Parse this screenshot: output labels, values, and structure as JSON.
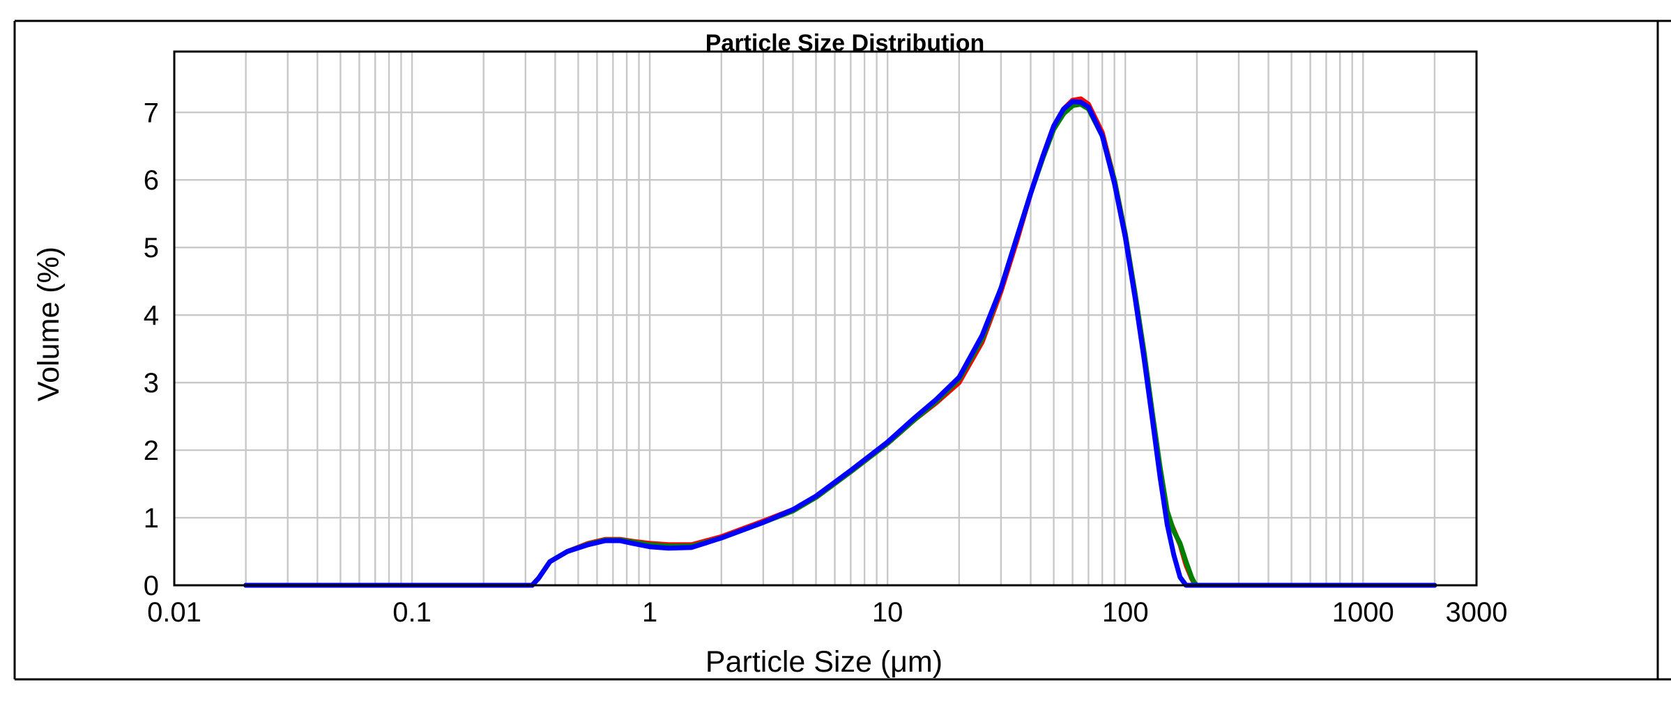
{
  "chart_data": {
    "type": "line",
    "title": "Particle Size Distribution",
    "xlabel": "Particle Size (μm)",
    "ylabel": "Volume (%)",
    "xscale": "log",
    "xlim": [
      0.01,
      3000
    ],
    "ylim": [
      0,
      7.9
    ],
    "grid": true,
    "x_ticks": [
      {
        "value": 0.01,
        "label": "0.01"
      },
      {
        "value": 0.1,
        "label": "0.1"
      },
      {
        "value": 1,
        "label": "1"
      },
      {
        "value": 10,
        "label": "10"
      },
      {
        "value": 100,
        "label": "100"
      },
      {
        "value": 1000,
        "label": "1000"
      },
      {
        "value": 3000,
        "label": "3000"
      }
    ],
    "y_ticks": [
      {
        "value": 0,
        "label": "0"
      },
      {
        "value": 1,
        "label": "1"
      },
      {
        "value": 2,
        "label": "2"
      },
      {
        "value": 3,
        "label": "3"
      },
      {
        "value": 4,
        "label": "4"
      },
      {
        "value": 5,
        "label": "5"
      },
      {
        "value": 6,
        "label": "6"
      },
      {
        "value": 7,
        "label": "7"
      }
    ],
    "colors": [
      "#ff0000",
      "#008000",
      "#0000ff"
    ],
    "series": [
      {
        "color": "#ff0000",
        "x": [
          0.02,
          0.2,
          0.32,
          0.34,
          0.38,
          0.45,
          0.55,
          0.65,
          0.75,
          0.85,
          1.0,
          1.2,
          1.5,
          2.0,
          3.0,
          4.0,
          5.0,
          7.0,
          10.0,
          13.0,
          16.0,
          20.0,
          25.0,
          30.0,
          35.0,
          40.0,
          45.0,
          50.0,
          55.0,
          60.0,
          65.0,
          70.0,
          80.0,
          90.0,
          100.0,
          110.0,
          120.0,
          130.0,
          140.0,
          150.0,
          160.0,
          170.0,
          180.0,
          190.0,
          195.0,
          200.0,
          220.0,
          500.0,
          1000.0,
          2000.0
        ],
        "y": [
          0.0,
          0.0,
          0.0,
          0.1,
          0.35,
          0.5,
          0.62,
          0.68,
          0.68,
          0.65,
          0.62,
          0.6,
          0.6,
          0.72,
          0.95,
          1.12,
          1.3,
          1.68,
          2.1,
          2.45,
          2.7,
          3.0,
          3.6,
          4.35,
          5.1,
          5.8,
          6.35,
          6.8,
          7.05,
          7.18,
          7.2,
          7.12,
          6.7,
          6.0,
          5.2,
          4.3,
          3.4,
          2.5,
          1.7,
          1.05,
          0.82,
          0.6,
          0.3,
          0.1,
          0.03,
          0.0,
          0.0,
          0.0,
          0.0,
          0.0
        ]
      },
      {
        "color": "#008000",
        "x": [
          0.02,
          0.2,
          0.32,
          0.34,
          0.38,
          0.45,
          0.55,
          0.65,
          0.75,
          0.85,
          1.0,
          1.2,
          1.5,
          2.0,
          3.0,
          4.0,
          5.0,
          7.0,
          10.0,
          13.0,
          16.0,
          20.0,
          25.0,
          30.0,
          35.0,
          40.0,
          45.0,
          50.0,
          55.0,
          60.0,
          65.0,
          70.0,
          80.0,
          90.0,
          100.0,
          110.0,
          120.0,
          130.0,
          140.0,
          150.0,
          160.0,
          170.0,
          180.0,
          190.0,
          195.0,
          200.0,
          220.0,
          500.0,
          1000.0,
          2000.0
        ],
        "y": [
          0.0,
          0.0,
          0.0,
          0.1,
          0.35,
          0.5,
          0.61,
          0.67,
          0.67,
          0.64,
          0.6,
          0.58,
          0.58,
          0.7,
          0.93,
          1.1,
          1.3,
          1.68,
          2.1,
          2.45,
          2.72,
          3.05,
          3.65,
          4.4,
          5.15,
          5.8,
          6.32,
          6.75,
          6.98,
          7.1,
          7.12,
          7.05,
          6.65,
          6.0,
          5.2,
          4.32,
          3.45,
          2.55,
          1.75,
          1.1,
          0.8,
          0.62,
          0.35,
          0.12,
          0.04,
          0.0,
          0.0,
          0.0,
          0.0,
          0.0
        ]
      },
      {
        "color": "#0000ff",
        "x": [
          0.02,
          0.2,
          0.32,
          0.34,
          0.38,
          0.45,
          0.55,
          0.65,
          0.75,
          0.85,
          1.0,
          1.2,
          1.5,
          2.0,
          3.0,
          4.0,
          5.0,
          7.0,
          10.0,
          13.0,
          16.0,
          20.0,
          25.0,
          30.0,
          35.0,
          40.0,
          45.0,
          50.0,
          55.0,
          60.0,
          65.0,
          70.0,
          80.0,
          90.0,
          100.0,
          110.0,
          120.0,
          130.0,
          140.0,
          150.0,
          160.0,
          170.0,
          180.0,
          2000.0
        ],
        "y": [
          0.0,
          0.0,
          0.0,
          0.1,
          0.35,
          0.5,
          0.6,
          0.66,
          0.66,
          0.62,
          0.57,
          0.55,
          0.56,
          0.7,
          0.93,
          1.12,
          1.32,
          1.7,
          2.12,
          2.48,
          2.75,
          3.08,
          3.7,
          4.4,
          5.15,
          5.8,
          6.35,
          6.8,
          7.05,
          7.16,
          7.15,
          7.08,
          6.65,
          5.95,
          5.15,
          4.25,
          3.35,
          2.45,
          1.6,
          0.9,
          0.45,
          0.12,
          0.0,
          0.0
        ]
      }
    ]
  }
}
